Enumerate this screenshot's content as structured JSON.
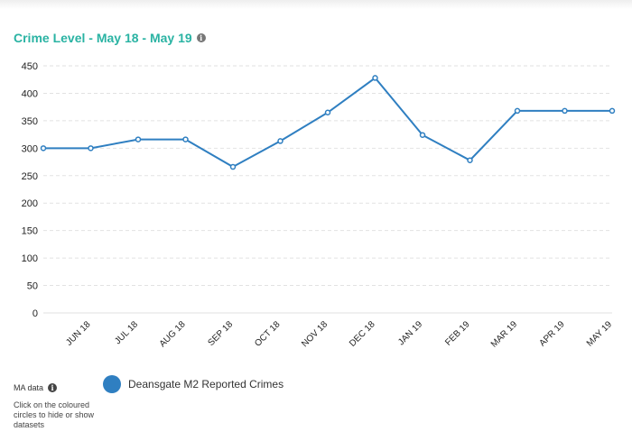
{
  "header": {
    "title": "Crime Level - May 18 - May 19",
    "info_icon": "info-icon"
  },
  "footer": {
    "ma_label": "MA data",
    "hint": "Click on the coloured circles to hide or show datasets"
  },
  "colors": {
    "accent": "#2ab3a3",
    "series": "#2f7fc1",
    "grid": "#e2e2e2"
  },
  "chart_data": {
    "type": "line",
    "categories": [
      "",
      "JUN 18",
      "JUL 18",
      "AUG 18",
      "SEP 18",
      "OCT 18",
      "NOV 18",
      "DEC 18",
      "JAN 19",
      "FEB 19",
      "MAR 19",
      "APR 19",
      "MAY 19"
    ],
    "series": [
      {
        "name": "Deansgate M2 Reported Crimes",
        "values": [
          300,
          300,
          316,
          316,
          266,
          313,
          365,
          428,
          324,
          278,
          368,
          368,
          368
        ]
      }
    ],
    "yticks": [
      0,
      50,
      100,
      150,
      200,
      250,
      300,
      350,
      400,
      450
    ],
    "ylim": [
      0,
      450
    ],
    "grid": true,
    "legend": "bottom-left",
    "xlabel": "",
    "ylabel": ""
  }
}
